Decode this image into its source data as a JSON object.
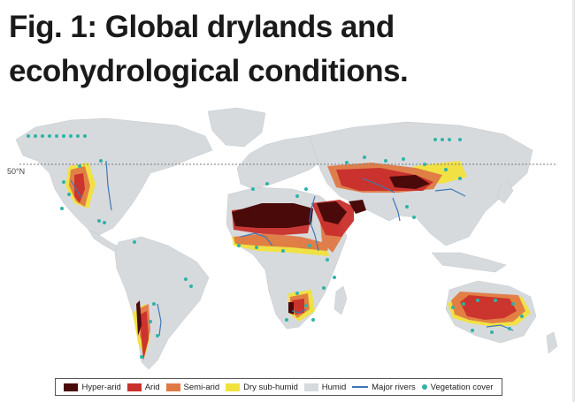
{
  "figure": {
    "title_line1": "Fig. 1: Global drylands and",
    "title_line2": "ecohydrological conditions.",
    "latitude_label": "50°N"
  },
  "legend": {
    "items": [
      {
        "label": "Hyper-arid",
        "color": "#4a0a0a",
        "kind": "swatch"
      },
      {
        "label": "Arid",
        "color": "#c9302c",
        "kind": "swatch"
      },
      {
        "label": "Semi-arid",
        "color": "#e07a45",
        "kind": "swatch"
      },
      {
        "label": "Dry sub-humid",
        "color": "#f2e23c",
        "kind": "swatch"
      },
      {
        "label": "Humid",
        "color": "#d6dadd",
        "kind": "swatch"
      },
      {
        "label": "Major rivers",
        "color": "#3f78b5",
        "kind": "line"
      },
      {
        "label": "Vegetation cover",
        "color": "#2fb3a8",
        "kind": "dot"
      }
    ]
  },
  "colors": {
    "hyper_arid": "#4a0a0a",
    "arid": "#c9302c",
    "semi_arid": "#e07a45",
    "dry_sub_humid": "#f2e23c",
    "humid": "#d6dadd",
    "rivers": "#3f78b5",
    "vegetation": "#2fb3a8"
  }
}
